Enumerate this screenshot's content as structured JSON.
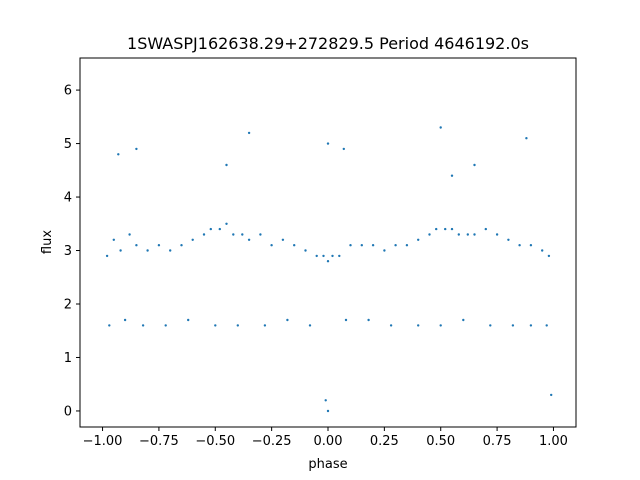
{
  "chart_data": {
    "type": "scatter",
    "title": "1SWASPJ162638.29+272829.5 Period 4646192.0s",
    "xlabel": "phase",
    "ylabel": "flux",
    "xlim": [
      -1.1,
      1.1
    ],
    "ylim": [
      -0.3,
      6.6
    ],
    "xticks": [
      -1.0,
      -0.75,
      -0.5,
      -0.25,
      0.0,
      0.25,
      0.5,
      0.75,
      1.0
    ],
    "xtick_labels": [
      "−1.00",
      "−0.75",
      "−0.50",
      "−0.25",
      "0.00",
      "0.25",
      "0.50",
      "0.75",
      "1.00"
    ],
    "yticks": [
      0,
      1,
      2,
      3,
      4,
      5,
      6
    ],
    "ytick_labels": [
      "0",
      "1",
      "2",
      "3",
      "4",
      "5",
      "6"
    ],
    "grid": false,
    "legend": "none",
    "marker_color": "#1f77b4",
    "series": [
      {
        "x": [
          -0.98,
          -0.95,
          -0.92,
          -0.88,
          -0.85,
          -0.8,
          -0.75,
          -0.7,
          -0.65,
          -0.6,
          -0.55,
          -0.52,
          -0.48,
          -0.45,
          -0.42,
          -0.38,
          -0.35,
          -0.3,
          -0.25,
          -0.2,
          -0.15,
          -0.1,
          -0.05,
          -0.02,
          0.0,
          0.02,
          0.05,
          0.1,
          0.15,
          0.2,
          0.25,
          0.3,
          0.35,
          0.4,
          0.45,
          0.48,
          0.52,
          0.55,
          0.58,
          0.62,
          0.65,
          0.7,
          0.75,
          0.8,
          0.85,
          0.9,
          0.95,
          0.98,
          -0.97,
          -0.9,
          -0.82,
          -0.72,
          -0.62,
          -0.5,
          -0.4,
          -0.28,
          -0.18,
          -0.08,
          0.08,
          0.18,
          0.28,
          0.4,
          0.5,
          0.6,
          0.72,
          0.82,
          0.9,
          0.97,
          -0.93,
          -0.45,
          -0.35,
          0.0,
          0.07,
          0.5,
          0.55,
          0.65,
          -0.85,
          0.88,
          0.99,
          -0.01,
          0.0
        ],
        "y": [
          2.9,
          3.2,
          3.0,
          3.3,
          3.1,
          3.0,
          3.1,
          3.0,
          3.1,
          3.2,
          3.3,
          3.4,
          3.4,
          3.5,
          3.3,
          3.3,
          3.2,
          3.3,
          3.1,
          3.2,
          3.1,
          3.0,
          2.9,
          2.9,
          2.8,
          2.9,
          2.9,
          3.1,
          3.1,
          3.1,
          3.0,
          3.1,
          3.1,
          3.2,
          3.3,
          3.4,
          3.4,
          3.4,
          3.3,
          3.3,
          3.3,
          3.4,
          3.3,
          3.2,
          3.1,
          3.1,
          3.0,
          2.9,
          1.6,
          1.7,
          1.6,
          1.6,
          1.7,
          1.6,
          1.6,
          1.6,
          1.7,
          1.6,
          1.7,
          1.7,
          1.6,
          1.6,
          1.6,
          1.7,
          1.6,
          1.6,
          1.6,
          1.6,
          4.8,
          4.6,
          5.2,
          5.0,
          4.9,
          5.3,
          4.4,
          4.6,
          4.9,
          5.1,
          0.3,
          0.2,
          0.0
        ]
      }
    ]
  }
}
